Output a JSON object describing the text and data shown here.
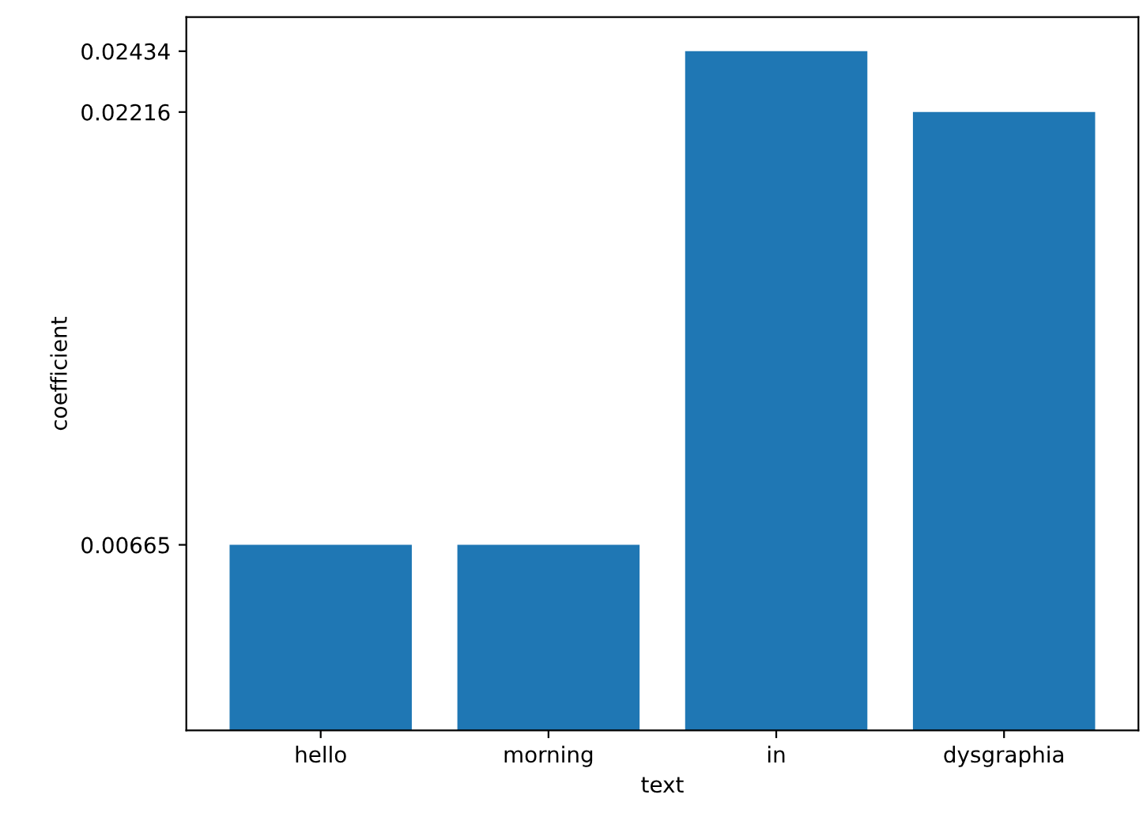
{
  "chart_data": {
    "type": "bar",
    "xlabel": "text",
    "ylabel": "coefficient",
    "categories": [
      "hello",
      "morning",
      "in",
      "dysgraphia"
    ],
    "values": [
      0.00665,
      0.00665,
      0.02434,
      0.02216
    ],
    "color": "#1f77b4",
    "ylim": [
      0,
      0.02556
    ],
    "yticks": [
      0.00665,
      0.02216,
      0.02434
    ],
    "grid": false
  }
}
